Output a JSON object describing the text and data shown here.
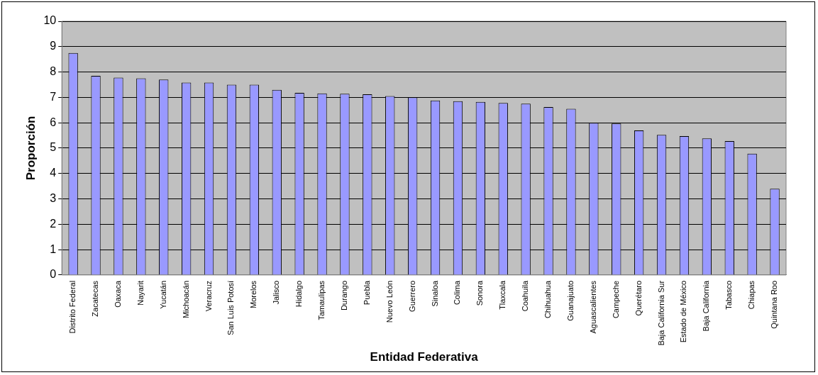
{
  "chart_data": {
    "type": "bar",
    "xlabel": "Entidad Federativa",
    "ylabel": "Proporción",
    "categories": [
      "Distrito Federal",
      "Zacatecas",
      "Oaxaca",
      "Nayarit",
      "Yucatán",
      "Michoacán",
      "Veracruz",
      "San Luis Potosí",
      "Morelos",
      "Jalisco",
      "Hidalgo",
      "Tamaulipas",
      "Durango",
      "Puebla",
      "Nuevo León",
      "Guerrero",
      "Sinaloa",
      "Colima",
      "Sonora",
      "Tlaxcala",
      "Coahuila",
      "Chihuahua",
      "Guanajuato",
      "Aguascalientes",
      "Campeche",
      "Querétaro",
      "Baja California Sur",
      "Estado de México",
      "Baja California",
      "Tabasco",
      "Chiapas",
      "Quintana Roo"
    ],
    "values": [
      8.75,
      7.85,
      7.78,
      7.75,
      7.7,
      7.58,
      7.58,
      7.5,
      7.5,
      7.3,
      7.18,
      7.16,
      7.14,
      7.12,
      7.05,
      7.0,
      6.88,
      6.85,
      6.82,
      6.78,
      6.75,
      6.62,
      6.55,
      6.0,
      5.97,
      5.7,
      5.52,
      5.47,
      5.38,
      5.28,
      4.78,
      3.4
    ],
    "color": "#9999ff",
    "ylim": [
      0,
      10
    ],
    "yticks": [
      0,
      1,
      2,
      3,
      4,
      5,
      6,
      7,
      8,
      9,
      10
    ],
    "grid": "y",
    "legend": false
  }
}
